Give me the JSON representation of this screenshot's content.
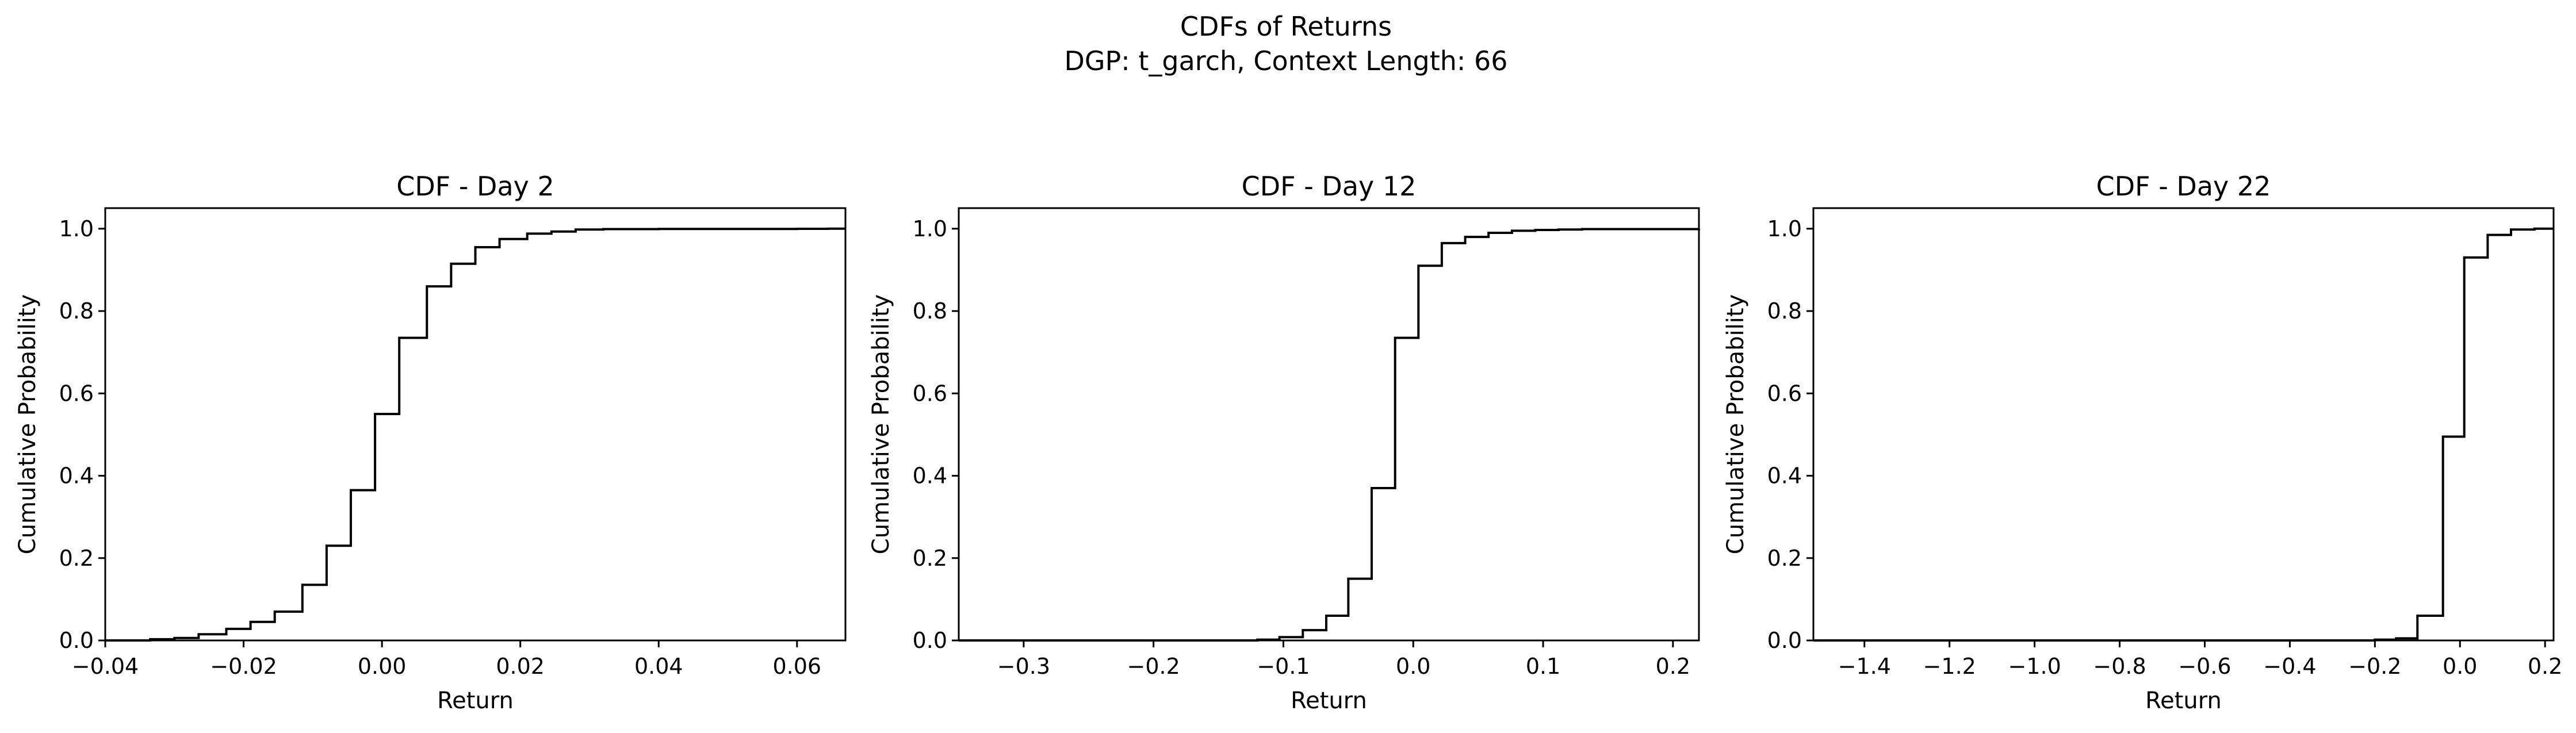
{
  "figure": {
    "suptitle_line1": "CDFs of Returns",
    "suptitle_line2": "DGP: t_garch, Context Length: 66"
  },
  "chart_data": [
    {
      "type": "line",
      "drawstyle": "step",
      "title": "CDF - Day 2",
      "xlabel": "Return",
      "ylabel": "Cumulative Probability",
      "xlim": [
        -0.04,
        0.067
      ],
      "ylim": [
        0,
        1.05
      ],
      "xticks": [
        -0.04,
        -0.02,
        0.0,
        0.02,
        0.04,
        0.06
      ],
      "xtick_labels": [
        "−0.04",
        "−0.02",
        "0.00",
        "0.02",
        "0.04",
        "0.06"
      ],
      "yticks": [
        0.0,
        0.2,
        0.4,
        0.6,
        0.8,
        1.0
      ],
      "ytick_labels": [
        "0.0",
        "0.2",
        "0.4",
        "0.6",
        "0.8",
        "1.0"
      ],
      "grid": false,
      "series": [
        {
          "x": [
            -0.04,
            -0.0335,
            -0.03,
            -0.0265,
            -0.0225,
            -0.019,
            -0.0155,
            -0.0115,
            -0.008,
            -0.0045,
            -0.001,
            0.0025,
            0.0065,
            0.01,
            0.0135,
            0.017,
            0.021,
            0.0245,
            0.028,
            0.032,
            0.04,
            0.06,
            0.0645,
            0.067
          ],
          "y": [
            0.0,
            0.003,
            0.006,
            0.015,
            0.028,
            0.045,
            0.07,
            0.135,
            0.23,
            0.365,
            0.55,
            0.735,
            0.86,
            0.915,
            0.955,
            0.975,
            0.988,
            0.993,
            0.998,
            0.999,
            0.9995,
            0.9998,
            1.0,
            1.0
          ]
        }
      ]
    },
    {
      "type": "line",
      "drawstyle": "step",
      "title": "CDF - Day 12",
      "xlabel": "Return",
      "ylabel": "Cumulative Probability",
      "xlim": [
        -0.35,
        0.22
      ],
      "ylim": [
        0,
        1.05
      ],
      "xticks": [
        -0.3,
        -0.2,
        -0.1,
        0.0,
        0.1,
        0.2
      ],
      "xtick_labels": [
        "−0.3",
        "−0.2",
        "−0.1",
        "0.0",
        "0.1",
        "0.2"
      ],
      "yticks": [
        0.0,
        0.2,
        0.4,
        0.6,
        0.8,
        1.0
      ],
      "ytick_labels": [
        "0.0",
        "0.2",
        "0.4",
        "0.6",
        "0.8",
        "1.0"
      ],
      "grid": false,
      "series": [
        {
          "x": [
            -0.35,
            -0.12,
            -0.103,
            -0.085,
            -0.067,
            -0.05,
            -0.032,
            -0.014,
            0.004,
            0.022,
            0.04,
            0.058,
            0.076,
            0.094,
            0.112,
            0.13,
            0.22
          ],
          "y": [
            0.0,
            0.002,
            0.008,
            0.025,
            0.06,
            0.15,
            0.37,
            0.735,
            0.91,
            0.965,
            0.98,
            0.99,
            0.995,
            0.997,
            0.998,
            0.999,
            1.0
          ]
        }
      ]
    },
    {
      "type": "line",
      "drawstyle": "step",
      "title": "CDF - Day 22",
      "xlabel": "Return",
      "ylabel": "Cumulative Probability",
      "xlim": [
        -1.52,
        0.22
      ],
      "ylim": [
        0,
        1.05
      ],
      "xticks": [
        -1.4,
        -1.2,
        -1.0,
        -0.8,
        -0.6,
        -0.4,
        -0.2,
        0.0,
        0.2
      ],
      "xtick_labels": [
        "−1.4",
        "−1.2",
        "−1.0",
        "−0.8",
        "−0.6",
        "−0.4",
        "−0.2",
        "0.0",
        "0.2"
      ],
      "yticks": [
        0.0,
        0.2,
        0.4,
        0.6,
        0.8,
        1.0
      ],
      "ytick_labels": [
        "0.0",
        "0.2",
        "0.4",
        "0.6",
        "0.8",
        "1.0"
      ],
      "grid": false,
      "series": [
        {
          "x": [
            -1.52,
            -0.2,
            -0.15,
            -0.1,
            -0.04,
            0.01,
            0.065,
            0.12,
            0.175,
            0.22
          ],
          "y": [
            0.0,
            0.002,
            0.005,
            0.06,
            0.495,
            0.93,
            0.985,
            0.998,
            1.0,
            1.0
          ]
        }
      ]
    }
  ]
}
